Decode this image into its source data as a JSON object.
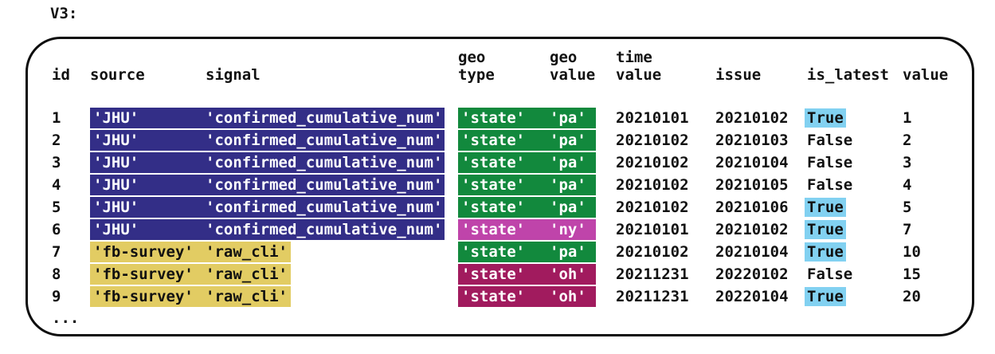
{
  "title": "V3:",
  "colors": {
    "indigo": "#332e87",
    "yellow": "#e2cc63",
    "green": "#12893d",
    "magenta": "#bf44aa",
    "maroon": "#a11b5e",
    "blue": "#82d1f1",
    "border": "#0d0d0d"
  },
  "table": {
    "headers": {
      "id": "id",
      "source": "source",
      "signal": "signal",
      "geo_type": "geo\ntype",
      "geo_value": "geo\nvalue",
      "time_value": "time\nvalue",
      "issue": "issue",
      "is_latest": "is_latest",
      "value": "value"
    },
    "ellipsis": "...",
    "rows": [
      {
        "id": "1",
        "source": "'JHU'",
        "signal": "'confirmed_cumulative_num'",
        "geo_type": "'state'",
        "geo_value": "'pa'",
        "time_value": "20210101",
        "issue": "20210102",
        "is_latest": "True",
        "value": "1",
        "hl": {
          "source_signal": "indigo",
          "geo": "green",
          "is_latest": true
        }
      },
      {
        "id": "2",
        "source": "'JHU'",
        "signal": "'confirmed_cumulative_num'",
        "geo_type": "'state'",
        "geo_value": "'pa'",
        "time_value": "20210102",
        "issue": "20210103",
        "is_latest": "False",
        "value": "2",
        "hl": {
          "source_signal": "indigo",
          "geo": "green",
          "is_latest": false
        }
      },
      {
        "id": "3",
        "source": "'JHU'",
        "signal": "'confirmed_cumulative_num'",
        "geo_type": "'state'",
        "geo_value": "'pa'",
        "time_value": "20210102",
        "issue": "20210104",
        "is_latest": "False",
        "value": "3",
        "hl": {
          "source_signal": "indigo",
          "geo": "green",
          "is_latest": false
        }
      },
      {
        "id": "4",
        "source": "'JHU'",
        "signal": "'confirmed_cumulative_num'",
        "geo_type": "'state'",
        "geo_value": "'pa'",
        "time_value": "20210102",
        "issue": "20210105",
        "is_latest": "False",
        "value": "4",
        "hl": {
          "source_signal": "indigo",
          "geo": "green",
          "is_latest": false
        }
      },
      {
        "id": "5",
        "source": "'JHU'",
        "signal": "'confirmed_cumulative_num'",
        "geo_type": "'state'",
        "geo_value": "'pa'",
        "time_value": "20210102",
        "issue": "20210106",
        "is_latest": "True",
        "value": "5",
        "hl": {
          "source_signal": "indigo",
          "geo": "green",
          "is_latest": true
        }
      },
      {
        "id": "6",
        "source": "'JHU'",
        "signal": "'confirmed_cumulative_num'",
        "geo_type": "'state'",
        "geo_value": "'ny'",
        "time_value": "20210101",
        "issue": "20210102",
        "is_latest": "True",
        "value": "7",
        "hl": {
          "source_signal": "indigo",
          "geo": "magenta",
          "is_latest": true
        }
      },
      {
        "id": "7",
        "source": "'fb-survey'",
        "signal": "'raw_cli'",
        "geo_type": "'state'",
        "geo_value": "'pa'",
        "time_value": "20210102",
        "issue": "20210104",
        "is_latest": "True",
        "value": "10",
        "hl": {
          "source_signal": "yellow",
          "geo": "green",
          "is_latest": true
        }
      },
      {
        "id": "8",
        "source": "'fb-survey'",
        "signal": "'raw_cli'",
        "geo_type": "'state'",
        "geo_value": "'oh'",
        "time_value": "20211231",
        "issue": "20220102",
        "is_latest": "False",
        "value": "15",
        "hl": {
          "source_signal": "yellow",
          "geo": "maroon",
          "is_latest": false
        }
      },
      {
        "id": "9",
        "source": "'fb-survey'",
        "signal": "'raw_cli'",
        "geo_type": "'state'",
        "geo_value": "'oh'",
        "time_value": "20211231",
        "issue": "20220104",
        "is_latest": "True",
        "value": "20",
        "hl": {
          "source_signal": "yellow",
          "geo": "maroon",
          "is_latest": true
        }
      }
    ]
  }
}
